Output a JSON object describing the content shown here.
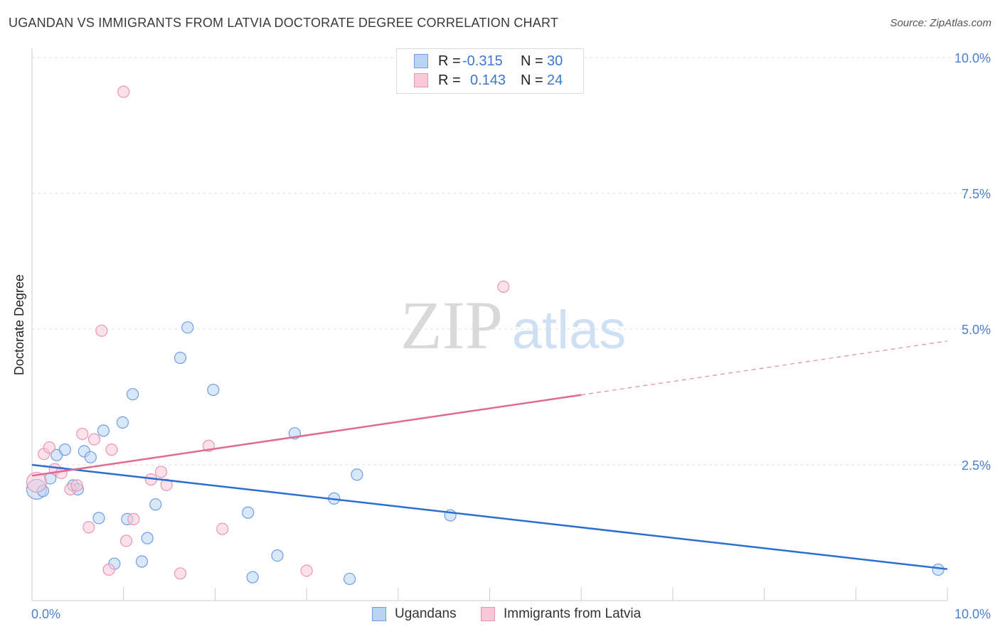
{
  "title": "UGANDAN VS IMMIGRANTS FROM LATVIA DOCTORATE DEGREE CORRELATION CHART",
  "source": "Source: ZipAtlas.com",
  "watermark": {
    "zip": "ZIP",
    "atlas": "atlas"
  },
  "legend_top": {
    "rows": [
      {
        "r_label": "R =",
        "r_value": "-0.315",
        "n_label": "N =",
        "n_value": "30",
        "color": "#b9d3f5",
        "stroke": "#6f9fe0"
      },
      {
        "r_label": "R =",
        "r_value": "0.143",
        "n_label": "N =",
        "n_value": "24",
        "color": "#f9c8d8",
        "stroke": "#e896b1"
      }
    ]
  },
  "legend_bottom": [
    {
      "label": "Ugandans",
      "color": "#b9d3f5",
      "stroke": "#6f9fe0"
    },
    {
      "label": "Immigrants from Latvia",
      "color": "#f9c8d8",
      "stroke": "#e896b1"
    }
  ],
  "chart_data": {
    "type": "scatter",
    "title": "UGANDAN VS IMMIGRANTS FROM LATVIA DOCTORATE DEGREE CORRELATION CHART",
    "xlabel": "",
    "ylabel": "Doctorate Degree",
    "xlim": [
      0,
      10
    ],
    "ylim": [
      0,
      10
    ],
    "x_tick_labels": [
      "0.0%",
      "10.0%"
    ],
    "y_ticks": [
      2.5,
      5.0,
      7.5,
      10.0
    ],
    "y_tick_labels": [
      "2.5%",
      "5.0%",
      "7.5%",
      "10.0%"
    ],
    "grid": true,
    "series": [
      {
        "name": "Ugandans",
        "color": "#6f9fe0",
        "fill": "#b9d3f5",
        "trend_color": "#2a6fd0",
        "trend": {
          "x0": 0,
          "y0": 2.5,
          "x1": 10,
          "y1": 0.58,
          "solid_until": 10
        },
        "points": [
          [
            0.05,
            2.05,
            14
          ],
          [
            0.12,
            2.02,
            8
          ],
          [
            0.2,
            2.25,
            8
          ],
          [
            0.27,
            2.68,
            8
          ],
          [
            0.36,
            2.78,
            8
          ],
          [
            0.45,
            2.12,
            8
          ],
          [
            0.5,
            2.05,
            8
          ],
          [
            0.57,
            2.75,
            8
          ],
          [
            0.64,
            2.64,
            8
          ],
          [
            0.73,
            1.52,
            8
          ],
          [
            0.78,
            3.13,
            8
          ],
          [
            0.9,
            0.68,
            8
          ],
          [
            0.99,
            3.28,
            8
          ],
          [
            1.04,
            1.5,
            8
          ],
          [
            1.1,
            3.8,
            8
          ],
          [
            1.2,
            0.72,
            8
          ],
          [
            1.26,
            1.15,
            8
          ],
          [
            1.35,
            1.77,
            8
          ],
          [
            1.62,
            4.47,
            8
          ],
          [
            1.7,
            5.03,
            8
          ],
          [
            1.98,
            3.88,
            8
          ],
          [
            2.36,
            1.62,
            8
          ],
          [
            2.41,
            0.43,
            8
          ],
          [
            2.68,
            0.83,
            8
          ],
          [
            2.87,
            3.08,
            8
          ],
          [
            3.3,
            1.88,
            8
          ],
          [
            3.47,
            0.4,
            8
          ],
          [
            3.55,
            2.32,
            8
          ],
          [
            4.57,
            1.57,
            8
          ],
          [
            9.9,
            0.57,
            8
          ]
        ]
      },
      {
        "name": "Immigrants from Latvia",
        "color": "#e896b1",
        "fill": "#f9c8d8",
        "trend_color": "#e06a92",
        "trend": {
          "x0": 0,
          "y0": 2.3,
          "x1": 10,
          "y1": 4.78,
          "solid_until": 6.0
        },
        "points": [
          [
            0.05,
            2.18,
            14
          ],
          [
            0.13,
            2.7,
            8
          ],
          [
            0.19,
            2.82,
            8
          ],
          [
            0.25,
            2.42,
            8
          ],
          [
            0.32,
            2.35,
            8
          ],
          [
            0.42,
            2.05,
            8
          ],
          [
            0.49,
            2.12,
            8
          ],
          [
            0.55,
            3.07,
            8
          ],
          [
            0.62,
            1.35,
            8
          ],
          [
            0.68,
            2.97,
            8
          ],
          [
            0.76,
            4.97,
            8
          ],
          [
            0.84,
            0.57,
            8
          ],
          [
            0.87,
            2.78,
            8
          ],
          [
            1.0,
            9.37,
            8
          ],
          [
            1.03,
            1.1,
            8
          ],
          [
            1.11,
            1.5,
            8
          ],
          [
            1.3,
            2.23,
            8
          ],
          [
            1.41,
            2.37,
            8
          ],
          [
            1.47,
            2.13,
            8
          ],
          [
            1.62,
            0.5,
            8
          ],
          [
            1.93,
            2.85,
            8
          ],
          [
            2.08,
            1.32,
            8
          ],
          [
            3.0,
            0.55,
            8
          ],
          [
            5.15,
            5.78,
            8
          ]
        ]
      }
    ]
  }
}
